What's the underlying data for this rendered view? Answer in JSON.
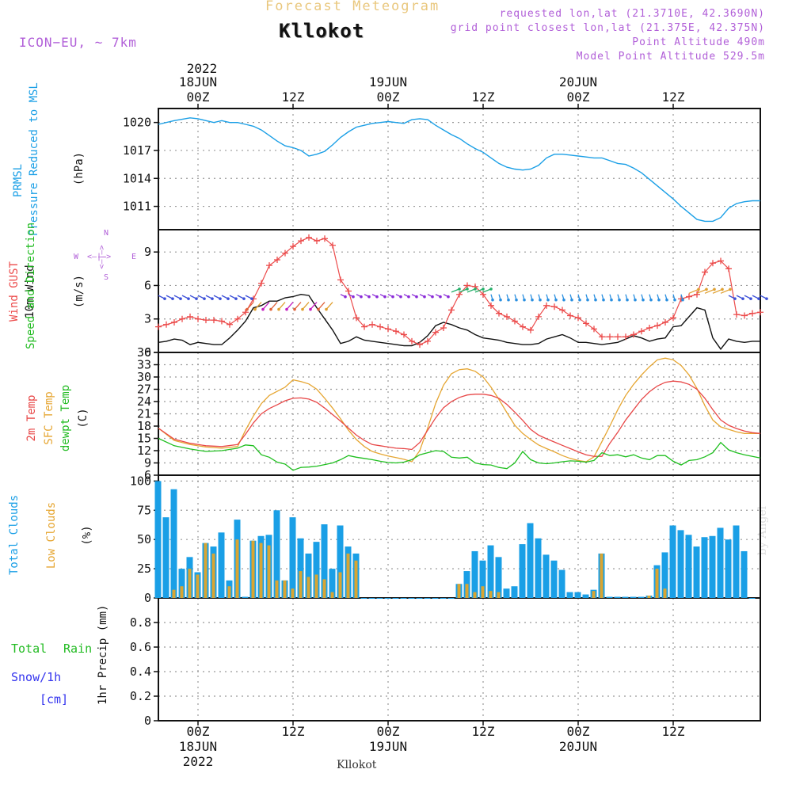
{
  "header": {
    "title": "Forecast Meteogram",
    "location": "Kllokot",
    "model": "ICON−EU, ~ 7km",
    "requested": "requested lon,lat (21.3710E, 42.3690N)",
    "grid_point": "grid point closest lon,lat (21.375E, 42.375N)",
    "point_alt": "Point Altitude 490m",
    "model_alt": "Model Point Altitude 529.5m",
    "footer_location": "Kllokot",
    "credit": "by Angel"
  },
  "time_axis": {
    "top_year": "2022",
    "top_labels": [
      {
        "line1": "18JUN",
        "line2": "00Z",
        "h": 6
      },
      {
        "line1": "",
        "line2": "12Z",
        "h": 18
      },
      {
        "line1": "19JUN",
        "line2": "00Z",
        "h": 30
      },
      {
        "line1": "",
        "line2": "12Z",
        "h": 42
      },
      {
        "line1": "20JUN",
        "line2": "00Z",
        "h": 54
      },
      {
        "line1": "",
        "line2": "12Z",
        "h": 66
      }
    ],
    "bottom_year": "2022",
    "bottom_labels": [
      {
        "line1": "00Z",
        "line2": "18JUN",
        "h": 6
      },
      {
        "line1": "12Z",
        "line2": "",
        "h": 18
      },
      {
        "line1": "00Z",
        "line2": "19JUN",
        "h": 30
      },
      {
        "line1": "12Z",
        "line2": "",
        "h": 42
      },
      {
        "line1": "00Z",
        "line2": "20JUN",
        "h": 54
      },
      {
        "line1": "12Z",
        "line2": "",
        "h": 66
      }
    ],
    "hours_range": [
      1,
      77
    ]
  },
  "panel_labels": {
    "pressure": {
      "a": "PRMSL",
      "b": "Pressure Reduced to MSL",
      "unit": "(hPa)"
    },
    "wind": {
      "a": "Wind GUST",
      "b": "10m Wind",
      "c": "Speed and Direction",
      "unit": "(m/s)",
      "compass_n": "N",
      "compass_s": "S",
      "compass_w": "W",
      "compass_e": "E",
      "compass_ns": "<–|–>",
      "compass_we": "<–|–>"
    },
    "temp": {
      "a": "2m Temp",
      "b": "SFC Temp",
      "c": "dewpt Temp",
      "unit": "(C)"
    },
    "clouds": {
      "a": "Total Clouds",
      "b": "Low Clouds",
      "unit": "(%)"
    },
    "precip": {
      "a": "Total",
      "a2": "Rain",
      "b": "Snow/1h",
      "c": "[cm]",
      "unit": "1hr Precip (mm)"
    }
  },
  "colors": {
    "pressure": "#1a9fe6",
    "gust": "#ec4b4b",
    "wind": "#111111",
    "t2m": "#e84848",
    "sfc": "#e6a632",
    "dewpt": "#1fbf1f",
    "total_cloud": "#1a9fe6",
    "low_cloud": "#d9a532",
    "label_blue": "#1a9fe6",
    "label_red": "#ec4b4b",
    "label_green": "#22bb22",
    "label_orange": "#e6a632",
    "label_purple": "#b15fd8",
    "label_snow": "#3333ee",
    "grid": "#999999"
  },
  "chart_data": [
    {
      "type": "line",
      "title": "PRMSL Pressure Reduced to MSL",
      "ylabel": "hPa",
      "ylim": [
        1008.5,
        1021.5
      ],
      "yticks": [
        1011,
        1014,
        1017,
        1020
      ],
      "x": [
        1,
        3,
        5,
        6,
        7,
        8,
        9,
        10,
        11,
        12,
        13,
        14,
        15,
        16,
        17,
        18,
        19,
        20,
        21,
        22,
        23,
        24,
        25,
        26,
        27,
        28,
        29,
        30,
        31,
        32,
        33,
        34,
        35,
        36,
        37,
        38,
        39,
        40,
        41,
        42,
        43,
        44,
        45,
        46,
        47,
        48,
        49,
        50,
        51,
        52,
        53,
        54,
        55,
        56,
        57,
        58,
        59,
        60,
        61,
        62,
        63,
        64,
        65,
        66,
        67,
        68,
        69,
        70,
        71,
        72,
        73,
        74,
        75,
        76,
        77
      ],
      "series": [
        {
          "name": "PRMSL",
          "values": [
            1019.8,
            1020.2,
            1020.5,
            1020.4,
            1020.2,
            1020.0,
            1020.2,
            1020.0,
            1020.0,
            1019.8,
            1019.6,
            1019.2,
            1018.6,
            1018.0,
            1017.5,
            1017.3,
            1017.0,
            1016.4,
            1016.6,
            1016.9,
            1017.6,
            1018.4,
            1019.0,
            1019.5,
            1019.7,
            1019.9,
            1020.0,
            1020.1,
            1020.0,
            1019.9,
            1020.3,
            1020.4,
            1020.3,
            1019.7,
            1019.2,
            1018.7,
            1018.3,
            1017.7,
            1017.2,
            1016.8,
            1016.2,
            1015.6,
            1015.2,
            1015.0,
            1014.9,
            1015.0,
            1015.4,
            1016.2,
            1016.6,
            1016.6,
            1016.5,
            1016.4,
            1016.3,
            1016.2,
            1016.2,
            1015.9,
            1015.6,
            1015.5,
            1015.1,
            1014.6,
            1013.9,
            1013.2,
            1012.5,
            1011.8,
            1011.0,
            1010.3,
            1009.6,
            1009.4,
            1009.4,
            1009.8,
            1010.8,
            1011.3,
            1011.5,
            1011.6,
            1011.6
          ]
        }
      ]
    },
    {
      "type": "line",
      "title": "Wind GUST / 10m Wind Speed and Direction",
      "ylabel": "m/s",
      "ylim": [
        0,
        11
      ],
      "yticks": [
        0,
        3,
        6,
        9
      ],
      "x": [
        1,
        2,
        3,
        4,
        5,
        6,
        7,
        8,
        9,
        10,
        11,
        12,
        13,
        14,
        15,
        16,
        17,
        18,
        19,
        20,
        21,
        22,
        23,
        24,
        25,
        26,
        27,
        28,
        29,
        30,
        31,
        32,
        33,
        34,
        35,
        36,
        37,
        38,
        39,
        40,
        41,
        42,
        43,
        44,
        45,
        46,
        47,
        48,
        49,
        50,
        51,
        52,
        53,
        54,
        55,
        56,
        57,
        58,
        59,
        60,
        61,
        62,
        63,
        64,
        65,
        66,
        67,
        68,
        69,
        70,
        71,
        72,
        73,
        74,
        75,
        76,
        77
      ],
      "series": [
        {
          "name": "Wind GUST",
          "values": [
            2.3,
            2.5,
            2.7,
            3.0,
            3.2,
            3.0,
            2.9,
            2.9,
            2.8,
            2.5,
            3.0,
            3.6,
            4.8,
            6.2,
            7.8,
            8.3,
            8.9,
            9.5,
            10.0,
            10.3,
            10.0,
            10.2,
            9.6,
            6.5,
            5.5,
            3.1,
            2.3,
            2.5,
            2.3,
            2.1,
            1.9,
            1.6,
            1.0,
            0.7,
            1.0,
            1.8,
            2.2,
            3.8,
            5.2,
            6.0,
            5.9,
            5.2,
            4.2,
            3.5,
            3.2,
            2.8,
            2.3,
            2.0,
            3.2,
            4.2,
            4.1,
            3.8,
            3.3,
            3.1,
            2.6,
            2.1,
            1.4,
            1.4,
            1.4,
            1.4,
            1.6,
            1.9,
            2.2,
            2.4,
            2.7,
            3.1,
            4.8,
            5.0,
            5.2,
            7.2,
            8.0,
            8.2,
            7.5,
            3.4,
            3.3,
            3.5,
            3.6
          ]
        },
        {
          "name": "10m Wind",
          "values": [
            0.9,
            1.0,
            1.2,
            1.1,
            0.7,
            0.9,
            0.8,
            0.7,
            0.7,
            1.3,
            2.0,
            2.8,
            4.0,
            4.2,
            4.6,
            4.6,
            4.9,
            5.0,
            5.2,
            5.1,
            4.0,
            3.0,
            2.0,
            0.8,
            1.0,
            1.4,
            1.1,
            1.0,
            0.9,
            0.8,
            0.7,
            0.6,
            0.6,
            0.9,
            1.5,
            2.4,
            2.7,
            2.5,
            2.2,
            2.0,
            1.6,
            1.3,
            1.2,
            1.1,
            0.9,
            0.8,
            0.7,
            0.7,
            0.8,
            1.2,
            1.4,
            1.6,
            1.3,
            0.9,
            0.9,
            0.8,
            0.7,
            0.8,
            0.9,
            1.2,
            1.5,
            1.3,
            1.0,
            1.2,
            1.3,
            2.3,
            2.4,
            3.2,
            4.0,
            3.8,
            1.3,
            0.3,
            1.2,
            1.0,
            0.9,
            1.0,
            1.0
          ]
        }
      ]
    },
    {
      "type": "line",
      "title": "2m Temp / SFC Temp / dewpt Temp",
      "ylabel": "C",
      "ylim": [
        6,
        36
      ],
      "yticks": [
        6,
        9,
        12,
        15,
        18,
        21,
        24,
        27,
        30,
        33,
        36
      ],
      "x": [
        1,
        3,
        5,
        7,
        9,
        11,
        12,
        13,
        14,
        15,
        16,
        17,
        18,
        19,
        20,
        21,
        22,
        23,
        24,
        25,
        26,
        27,
        28,
        29,
        30,
        31,
        32,
        33,
        34,
        35,
        36,
        37,
        38,
        39,
        40,
        41,
        42,
        43,
        44,
        45,
        46,
        47,
        48,
        49,
        50,
        51,
        52,
        53,
        54,
        55,
        56,
        57,
        58,
        59,
        60,
        61,
        62,
        63,
        64,
        65,
        66,
        67,
        68,
        69,
        70,
        71,
        72,
        73,
        74,
        75,
        76,
        77
      ],
      "series": [
        {
          "name": "2m Temp",
          "values": [
            17.5,
            14.8,
            13.8,
            13.2,
            13.0,
            13.5,
            16.0,
            18.8,
            21.0,
            22.3,
            23.2,
            24.2,
            24.8,
            24.9,
            24.6,
            23.8,
            22.4,
            20.8,
            19.2,
            17.5,
            15.8,
            14.5,
            13.5,
            13.2,
            12.9,
            12.6,
            12.5,
            12.3,
            14.0,
            17.0,
            20.0,
            22.5,
            24.0,
            25.0,
            25.6,
            25.8,
            25.8,
            25.5,
            24.8,
            23.3,
            21.4,
            19.4,
            17.2,
            15.8,
            14.9,
            14.1,
            13.3,
            12.5,
            11.7,
            11.0,
            10.6,
            10.6,
            13.8,
            16.5,
            19.5,
            22.0,
            24.5,
            26.4,
            27.8,
            28.7,
            29.0,
            28.8,
            28.2,
            27.0,
            24.8,
            22.0,
            19.5,
            18.2,
            17.4,
            16.8,
            16.4,
            16.2
          ]
        },
        {
          "name": "SFC Temp",
          "values": [
            17.5,
            14.5,
            13.5,
            12.9,
            12.6,
            13.0,
            17.0,
            20.5,
            23.5,
            25.5,
            26.5,
            27.5,
            29.3,
            28.9,
            28.3,
            27.0,
            24.8,
            22.4,
            19.8,
            17.0,
            14.7,
            13.0,
            11.8,
            11.2,
            10.7,
            10.3,
            9.9,
            9.3,
            12.0,
            17.5,
            23.5,
            28.0,
            30.8,
            31.8,
            32.0,
            31.4,
            30.0,
            27.5,
            24.5,
            21.3,
            18.2,
            16.2,
            14.7,
            13.4,
            12.5,
            11.7,
            10.8,
            10.1,
            9.6,
            9.3,
            10.5,
            14.2,
            18.0,
            22.0,
            25.5,
            28.2,
            30.5,
            32.5,
            34.2,
            34.6,
            34.2,
            32.8,
            30.5,
            27.2,
            23.0,
            19.5,
            17.8,
            17.2,
            16.6,
            16.2,
            16.2,
            16.2
          ]
        },
        {
          "name": "dewpt Temp",
          "values": [
            15.0,
            13.2,
            12.4,
            11.8,
            12.0,
            12.6,
            13.4,
            13.2,
            11.0,
            10.4,
            9.2,
            8.7,
            7.2,
            7.9,
            8.0,
            8.2,
            8.6,
            9.0,
            9.8,
            10.8,
            10.4,
            10.1,
            9.8,
            9.4,
            9.1,
            9.0,
            9.2,
            9.8,
            11.0,
            11.5,
            12.0,
            11.8,
            10.4,
            10.2,
            10.4,
            9.0,
            8.6,
            8.5,
            7.9,
            7.6,
            9.0,
            11.8,
            9.8,
            9.0,
            8.8,
            9.0,
            9.3,
            9.5,
            9.4,
            9.2,
            9.6,
            11.5,
            10.8,
            11.0,
            10.5,
            11.0,
            10.2,
            9.8,
            10.8,
            10.8,
            9.4,
            8.5,
            9.6,
            9.8,
            10.5,
            11.5,
            14.0,
            12.2,
            11.5,
            11.0,
            10.6,
            10.2
          ]
        }
      ]
    },
    {
      "type": "bar",
      "title": "Total Clouds / Low Clouds",
      "ylabel": "%",
      "ylim": [
        0,
        105
      ],
      "yticks": [
        0,
        25,
        50,
        75,
        100
      ],
      "x": [
        1,
        2,
        3,
        4,
        5,
        6,
        7,
        8,
        9,
        10,
        11,
        12,
        13,
        14,
        15,
        16,
        17,
        18,
        19,
        20,
        21,
        22,
        23,
        24,
        25,
        26,
        27,
        28,
        29,
        30,
        31,
        32,
        33,
        34,
        35,
        36,
        37,
        38,
        39,
        40,
        41,
        42,
        43,
        44,
        45,
        46,
        47,
        48,
        49,
        50,
        51,
        52,
        53,
        54,
        55,
        56,
        57,
        58,
        59,
        60,
        61,
        62,
        63,
        64,
        65,
        66,
        67,
        68,
        69,
        70,
        71,
        72,
        73,
        74,
        75,
        76,
        77
      ],
      "series": [
        {
          "name": "Total Clouds",
          "values": [
            100,
            69,
            93,
            25,
            35,
            22,
            47,
            44,
            56,
            15,
            67,
            1,
            49,
            53,
            54,
            75,
            15,
            69,
            51,
            38,
            48,
            63,
            25,
            62,
            44,
            38,
            0,
            0,
            0,
            0,
            0,
            0,
            0,
            0,
            0,
            0,
            0,
            0,
            12,
            23,
            40,
            32,
            45,
            35,
            8,
            10,
            46,
            64,
            51,
            37,
            32,
            24,
            5,
            5,
            3,
            7,
            38,
            1,
            1,
            1,
            1,
            1,
            2,
            28,
            39,
            62,
            58,
            54,
            44,
            52,
            53,
            60,
            50,
            62,
            40,
            0,
            0
          ]
        },
        {
          "name": "Low Clouds",
          "values": [
            0,
            0,
            7,
            10,
            25,
            20,
            47,
            38,
            0,
            10,
            50,
            0,
            49,
            47,
            45,
            15,
            15,
            8,
            23,
            18,
            20,
            16,
            5,
            22,
            38,
            32,
            0,
            0,
            0,
            0,
            0,
            0,
            0,
            0,
            0,
            0,
            0,
            0,
            12,
            12,
            5,
            10,
            6,
            5,
            0,
            0,
            0,
            0,
            0,
            0,
            0,
            0,
            0,
            0,
            0,
            6,
            38,
            0,
            0,
            0,
            0,
            0,
            2,
            25,
            8,
            0,
            0,
            0,
            0,
            0,
            0,
            0,
            0,
            0,
            0,
            0,
            0
          ]
        }
      ]
    },
    {
      "type": "bar",
      "title": "1hr Precip",
      "ylabel": "1hr Precip (mm)",
      "ylim": [
        0,
        1.0
      ],
      "yticks": [
        0,
        0.2,
        0.4,
        0.6,
        0.8
      ],
      "x": [],
      "series": [
        {
          "name": "Total Rain",
          "values": []
        },
        {
          "name": "Snow/1h",
          "values": []
        }
      ]
    }
  ]
}
